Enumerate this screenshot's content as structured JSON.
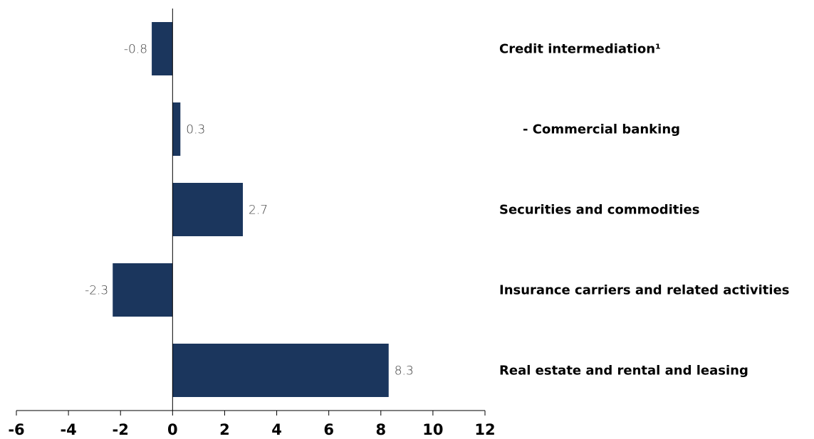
{
  "chart_data": {
    "type": "bar",
    "orientation": "horizontal",
    "categories": [
      "Credit intermediation¹",
      "- Commercial banking",
      "Securities and commodities",
      "Insurance carriers and related activities",
      "Real estate and rental and leasing"
    ],
    "values": [
      -0.8,
      0.3,
      2.7,
      -2.3,
      8.3
    ],
    "data_labels": [
      "-0.8",
      "0.3",
      "2.7",
      "-2.3",
      "8.3"
    ],
    "title": "",
    "xlabel": "",
    "ylabel": "",
    "xlim": [
      -6,
      12
    ],
    "xticks": [
      -6,
      -4,
      -2,
      0,
      2,
      4,
      6,
      8,
      10,
      12
    ],
    "xtick_labels": [
      "-6",
      "-4",
      "-2",
      "0",
      "2",
      "4",
      "6",
      "8",
      "10",
      "12"
    ],
    "grid": false,
    "legend": "none",
    "bar_color": "#1b365d"
  }
}
